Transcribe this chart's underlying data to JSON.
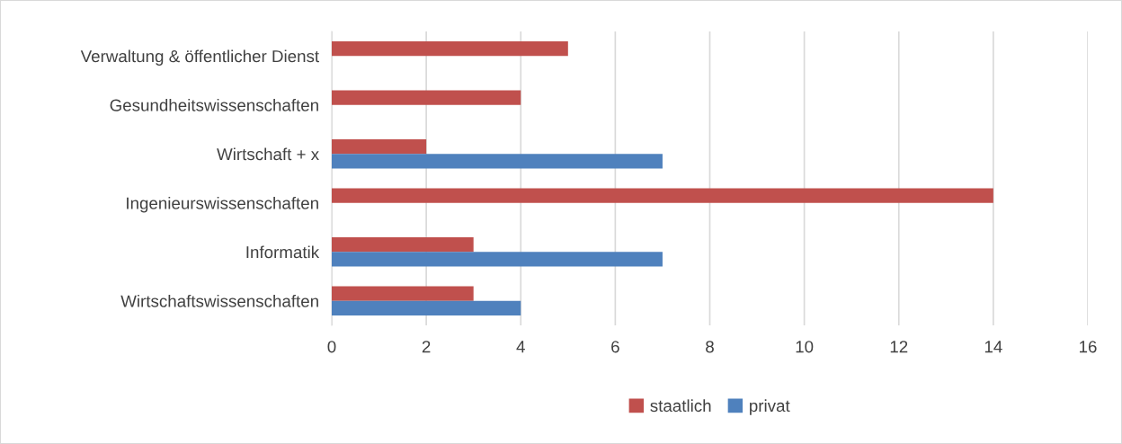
{
  "chart_data": {
    "type": "bar",
    "orientation": "horizontal",
    "categories": [
      "Verwaltung & öffentlicher Dienst",
      "Gesundheitswissenschaften",
      "Wirtschaft + x",
      "Ingenieurswissenschaften",
      "Informatik",
      "Wirtschaftswissenschaften"
    ],
    "series": [
      {
        "name": "staatlich",
        "color": "#c0504d",
        "values": [
          5,
          4,
          2,
          14,
          3,
          3
        ]
      },
      {
        "name": "privat",
        "color": "#4f81bd",
        "values": [
          null,
          null,
          7,
          null,
          7,
          4
        ]
      }
    ],
    "xlim": [
      0,
      16
    ],
    "xticks": [
      0,
      2,
      4,
      6,
      8,
      10,
      12,
      14,
      16
    ],
    "grid": "x",
    "legend": "bottom"
  }
}
